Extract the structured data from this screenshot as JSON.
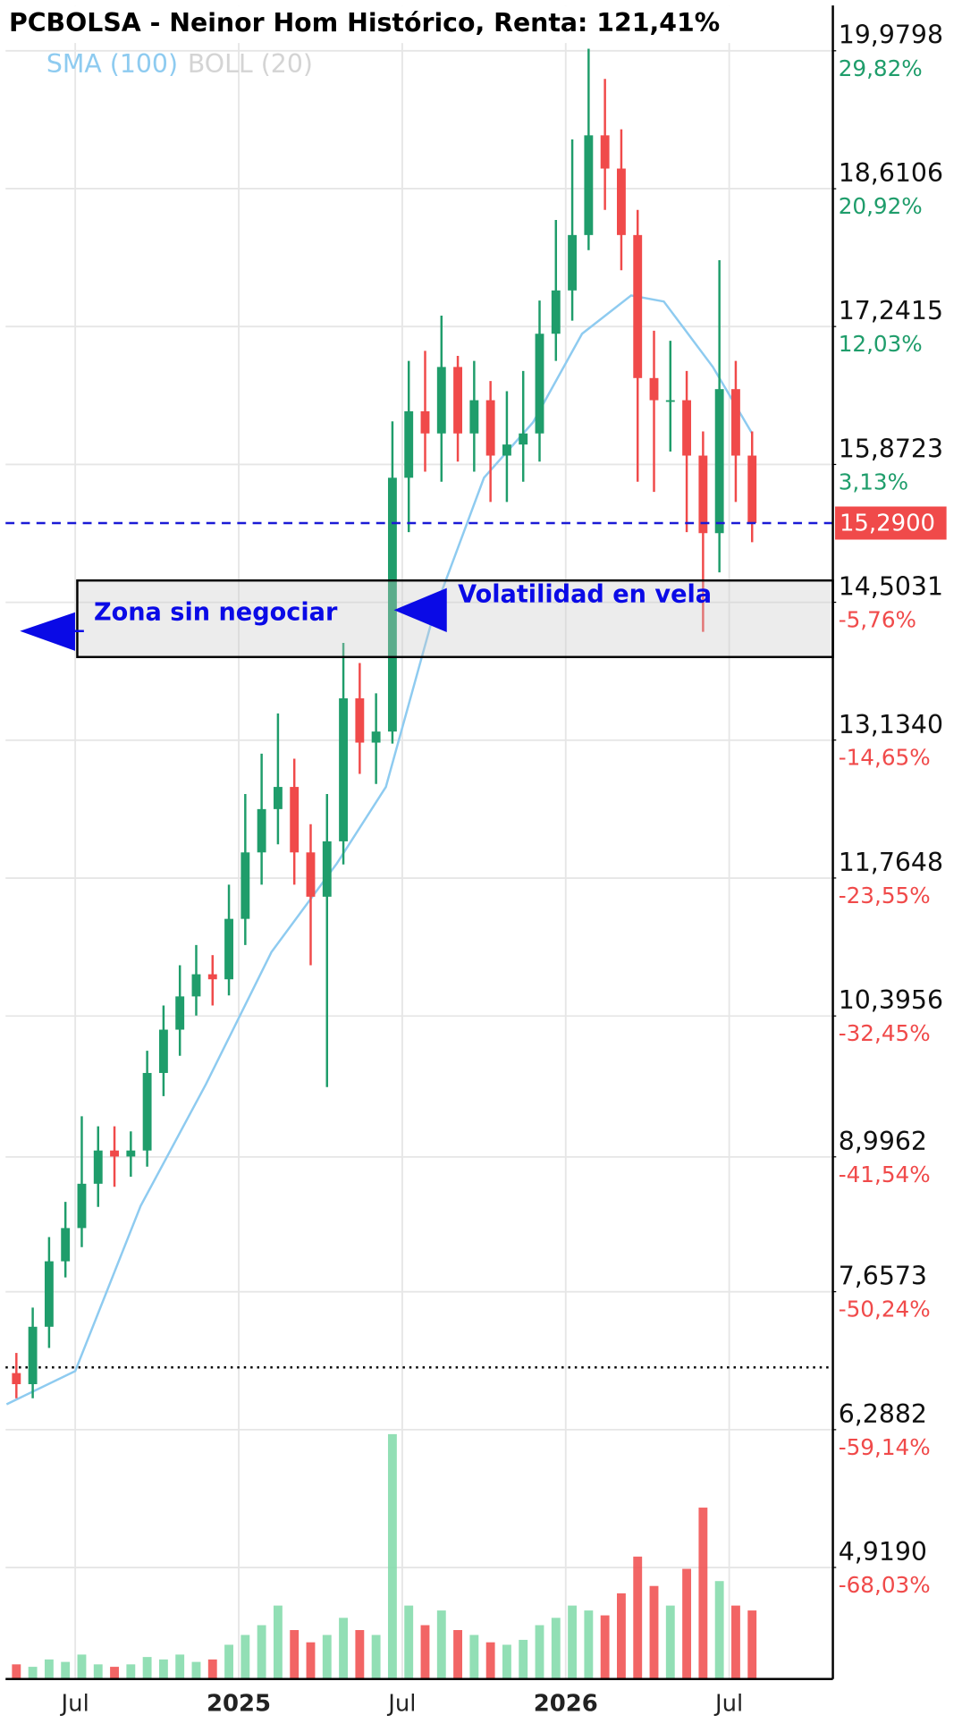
{
  "chart_data": {
    "type": "candlestick",
    "title": "PCBOLSA - Neinor Hom Histórico, Renta: 121,41%",
    "legend": [
      "SMA (100)",
      "BOLL (20)"
    ],
    "up_color": "#1f9d6b",
    "down_color": "#f04a4a",
    "sma_color": "#8ecbf0",
    "xlim": [
      2024.287,
      2026.817
    ],
    "xticks": [
      {
        "value": 2024.5,
        "label": "Jul"
      },
      {
        "value": 2025,
        "label": "2025"
      },
      {
        "value": 2025.5,
        "label": "Jul"
      },
      {
        "value": 2026,
        "label": "2026"
      },
      {
        "value": 2026.5,
        "label": "Jul"
      }
    ],
    "ylim": [
      3.812,
      20.429
    ],
    "yticks": [
      {
        "value": 19.9798,
        "label": "19,9798"
      },
      {
        "value": 18.6106,
        "label": "18,6106"
      },
      {
        "value": 17.2415,
        "label": "17,2415"
      },
      {
        "value": 15.8723,
        "label": "15,8723"
      },
      {
        "value": 14.5031,
        "label": "14,5031"
      },
      {
        "value": 13.134,
        "label": "13,1340"
      },
      {
        "value": 11.7648,
        "label": "11,7648"
      },
      {
        "value": 10.3956,
        "label": "10,3956"
      },
      {
        "value": 8.9962,
        "label": "8,9962"
      },
      {
        "value": 7.6573,
        "label": "7,6573"
      },
      {
        "value": 6.2882,
        "label": "6,2882"
      },
      {
        "value": 4.919,
        "label": "4,9190"
      }
    ],
    "y2lim": [
      -75.23,
      32.74
    ],
    "y2ticks": [
      {
        "value": 29.82,
        "label": "29,82%"
      },
      {
        "value": 20.92,
        "label": "20,92%"
      },
      {
        "value": 12.03,
        "label": "12,03%"
      },
      {
        "value": 3.13,
        "label": "3,13%"
      },
      {
        "value": -5.76,
        "label": "-5,76%"
      },
      {
        "value": -14.65,
        "label": "-14,65%"
      },
      {
        "value": -23.55,
        "label": "-23,55%"
      },
      {
        "value": -32.45,
        "label": "-32,45%"
      },
      {
        "value": -41.54,
        "label": "-41,54%"
      },
      {
        "value": -50.24,
        "label": "-50,24%"
      },
      {
        "value": -59.14,
        "label": "-59,14%"
      },
      {
        "value": -68.03,
        "label": "-68,03%"
      }
    ],
    "last_price": {
      "value": 15.29,
      "label": "15,2900"
    },
    "start_price": 6.906,
    "x": [
      2024.32,
      2024.37,
      2024.42,
      2024.47,
      2024.52,
      2024.57,
      2024.62,
      2024.67,
      2024.72,
      2024.77,
      2024.82,
      2024.87,
      2024.92,
      2024.97,
      2025.02,
      2025.07,
      2025.12,
      2025.17,
      2025.22,
      2025.27,
      2025.32,
      2025.37,
      2025.42,
      2025.47,
      2025.52,
      2025.57,
      2025.62,
      2025.67,
      2025.72,
      2025.77,
      2025.82,
      2025.87,
      2025.92,
      2025.97,
      2026.02,
      2026.07,
      2026.12,
      2026.17,
      2026.22,
      2026.27,
      2026.32,
      2026.37,
      2026.42,
      2026.47,
      2026.52,
      2026.57
    ],
    "open": [
      6.85,
      6.74,
      7.31,
      7.96,
      8.29,
      8.73,
      9.06,
      9.0,
      9.06,
      9.83,
      10.26,
      10.59,
      10.81,
      10.76,
      11.36,
      12.02,
      12.45,
      12.67,
      12.02,
      11.58,
      12.13,
      13.55,
      13.11,
      13.22,
      15.74,
      16.4,
      16.18,
      16.84,
      16.18,
      16.51,
      15.96,
      16.07,
      16.18,
      17.17,
      17.6,
      18.15,
      19.14,
      18.81,
      18.15,
      16.73,
      16.51,
      16.51,
      15.96,
      15.19,
      16.62,
      15.96
    ],
    "high": [
      7.05,
      7.5,
      8.2,
      8.55,
      9.4,
      9.3,
      9.3,
      9.25,
      10.05,
      10.5,
      10.9,
      11.1,
      11.0,
      11.7,
      12.6,
      13.0,
      13.4,
      12.95,
      12.3,
      12.6,
      14.1,
      13.9,
      13.6,
      16.3,
      16.9,
      17.0,
      17.35,
      16.95,
      16.9,
      16.7,
      16.6,
      16.8,
      17.5,
      18.3,
      19.1,
      20.0,
      19.7,
      19.2,
      18.4,
      17.2,
      17.1,
      16.8,
      16.2,
      17.9,
      16.9,
      16.2
    ],
    "low": [
      6.6,
      6.6,
      7.1,
      7.8,
      8.1,
      8.5,
      8.7,
      8.8,
      8.9,
      9.6,
      10.0,
      10.4,
      10.5,
      10.6,
      11.1,
      11.7,
      12.1,
      11.7,
      10.9,
      9.69,
      11.9,
      12.8,
      12.7,
      13.1,
      15.2,
      15.8,
      15.7,
      15.9,
      15.8,
      15.5,
      15.5,
      15.7,
      15.9,
      16.9,
      17.3,
      18.0,
      18.4,
      17.8,
      15.7,
      15.6,
      16.0,
      15.2,
      14.21,
      14.8,
      15.5,
      15.1
    ],
    "close": [
      6.74,
      7.31,
      7.96,
      8.29,
      8.73,
      9.06,
      9.0,
      9.06,
      9.83,
      10.26,
      10.59,
      10.81,
      10.76,
      11.36,
      12.02,
      12.45,
      12.67,
      12.02,
      11.58,
      12.13,
      13.55,
      13.11,
      13.22,
      15.74,
      16.4,
      16.18,
      16.84,
      16.18,
      16.51,
      15.96,
      16.07,
      16.18,
      17.17,
      17.6,
      18.15,
      19.14,
      18.81,
      18.15,
      16.73,
      16.51,
      16.51,
      15.96,
      15.19,
      16.62,
      15.96,
      15.29
    ],
    "volume_ylim": [
      0,
      100
    ],
    "volume": [
      6,
      5,
      8,
      7,
      10,
      6,
      5,
      6,
      9,
      8,
      10,
      7,
      8,
      14,
      18,
      22,
      30,
      20,
      15,
      18,
      25,
      20,
      18,
      100,
      30,
      22,
      28,
      20,
      18,
      15,
      14,
      16,
      22,
      25,
      30,
      28,
      26,
      35,
      50,
      38,
      30,
      45,
      70,
      40,
      30,
      28
    ],
    "sma": {
      "x": [
        2024.29,
        2024.5,
        2024.7,
        2024.9,
        2025.1,
        2025.3,
        2025.45,
        2025.6,
        2025.75,
        2025.9,
        2026.05,
        2026.2,
        2026.3,
        2026.45,
        2026.57
      ],
      "values": [
        6.54,
        6.87,
        8.51,
        9.72,
        11.03,
        11.91,
        12.67,
        14.43,
        15.74,
        16.29,
        17.17,
        17.55,
        17.49,
        16.84,
        16.18
      ]
    },
    "zone": {
      "ylim": [
        13.96,
        14.72
      ]
    },
    "annotations": [
      "Zona sin negociar",
      "Volatilidad en vela"
    ]
  }
}
